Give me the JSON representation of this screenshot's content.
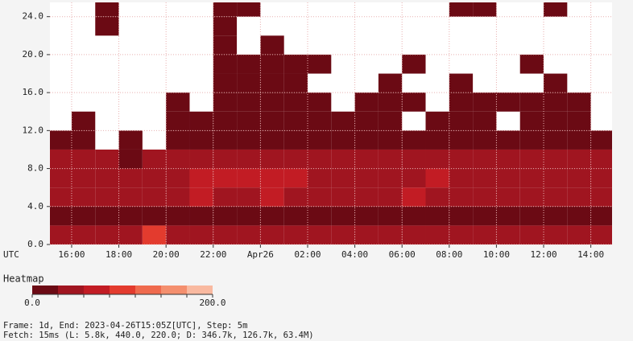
{
  "chart_data": {
    "type": "heatmap",
    "x_label": "UTC",
    "xlim": [
      15.08,
      38.9
    ],
    "xticks": [
      {
        "value": 16,
        "label": "16:00"
      },
      {
        "value": 18,
        "label": "18:00"
      },
      {
        "value": 20,
        "label": "20:00"
      },
      {
        "value": 22,
        "label": "22:00"
      },
      {
        "value": 24,
        "label": "Apr26"
      },
      {
        "value": 26,
        "label": "02:00"
      },
      {
        "value": 28,
        "label": "04:00"
      },
      {
        "value": 30,
        "label": "06:00"
      },
      {
        "value": 32,
        "label": "08:00"
      },
      {
        "value": 34,
        "label": "10:00"
      },
      {
        "value": 36,
        "label": "12:00"
      },
      {
        "value": 38,
        "label": "14:00"
      }
    ],
    "ylim": [
      0,
      25.5
    ],
    "yticks": [
      {
        "value": 0,
        "label": "0.0"
      },
      {
        "value": 4,
        "label": "4.0"
      },
      {
        "value": 8,
        "label": "8.0"
      },
      {
        "value": 12,
        "label": "12.0"
      },
      {
        "value": 16,
        "label": "16.0"
      },
      {
        "value": 20,
        "label": "20.0"
      },
      {
        "value": 24,
        "label": "24.0"
      }
    ],
    "grid": true,
    "x_bins": [
      15.08,
      16,
      17,
      18,
      19,
      20,
      21,
      22,
      23,
      24,
      25,
      26,
      27,
      28,
      29,
      30,
      31,
      32,
      33,
      34,
      35,
      36,
      37,
      38,
      38.9
    ],
    "y_bins": [
      0,
      2,
      4,
      6,
      8,
      10,
      12,
      14,
      16,
      18,
      20,
      22,
      24,
      26
    ],
    "values": [
      [
        30,
        30,
        30,
        35,
        110,
        30,
        30,
        30,
        30,
        30,
        30,
        30,
        30,
        30,
        30,
        30,
        30,
        30,
        30,
        30,
        30,
        30,
        30,
        30
      ],
      [
        25,
        25,
        25,
        25,
        25,
        25,
        25,
        25,
        25,
        25,
        25,
        25,
        25,
        25,
        25,
        25,
        25,
        25,
        25,
        25,
        25,
        25,
        25,
        25
      ],
      [
        40,
        45,
        40,
        45,
        40,
        40,
        60,
        40,
        45,
        60,
        40,
        45,
        40,
        45,
        40,
        60,
        45,
        40,
        45,
        40,
        45,
        40,
        45,
        40
      ],
      [
        50,
        45,
        50,
        45,
        50,
        55,
        60,
        70,
        60,
        70,
        65,
        50,
        45,
        50,
        45,
        50,
        60,
        50,
        45,
        50,
        55,
        50,
        45,
        50
      ],
      [
        30,
        30,
        30,
        25,
        30,
        35,
        45,
        40,
        45,
        40,
        35,
        30,
        30,
        30,
        30,
        30,
        35,
        30,
        30,
        30,
        30,
        30,
        30,
        30
      ],
      [
        15,
        10,
        null,
        10,
        null,
        20,
        15,
        20,
        15,
        20,
        15,
        10,
        15,
        10,
        15,
        10,
        15,
        10,
        15,
        10,
        10,
        15,
        10,
        10
      ],
      [
        null,
        10,
        null,
        null,
        null,
        15,
        10,
        15,
        20,
        15,
        15,
        10,
        10,
        15,
        10,
        null,
        10,
        10,
        15,
        null,
        10,
        15,
        10,
        null
      ],
      [
        null,
        null,
        null,
        null,
        null,
        10,
        null,
        10,
        15,
        10,
        10,
        10,
        null,
        10,
        10,
        10,
        null,
        10,
        10,
        10,
        10,
        10,
        10,
        null
      ],
      [
        null,
        null,
        null,
        null,
        null,
        null,
        null,
        10,
        10,
        10,
        10,
        null,
        null,
        null,
        10,
        null,
        null,
        10,
        null,
        null,
        null,
        10,
        null,
        null
      ],
      [
        null,
        null,
        null,
        null,
        null,
        null,
        null,
        10,
        10,
        10,
        10,
        10,
        null,
        null,
        null,
        10,
        null,
        null,
        null,
        null,
        10,
        null,
        null,
        null
      ],
      [
        null,
        null,
        null,
        null,
        null,
        null,
        null,
        10,
        null,
        10,
        null,
        null,
        null,
        null,
        null,
        null,
        null,
        null,
        null,
        null,
        null,
        null,
        null,
        null
      ],
      [
        null,
        null,
        10,
        null,
        null,
        null,
        null,
        10,
        null,
        null,
        null,
        null,
        null,
        null,
        null,
        null,
        null,
        null,
        null,
        null,
        null,
        null,
        null,
        null
      ],
      [
        null,
        null,
        10,
        null,
        null,
        null,
        null,
        10,
        10,
        null,
        null,
        null,
        null,
        null,
        null,
        null,
        null,
        10,
        10,
        null,
        null,
        10,
        null,
        null
      ]
    ],
    "legend_title": "Heatmap",
    "scale_range": [
      {
        "value": 0,
        "label": "0.0"
      },
      {
        "value": 200,
        "label": "200.0"
      }
    ],
    "colors": [
      "#6b0a14",
      "#a01520",
      "#c21c24",
      "#e33b2e",
      "#ef6a4e",
      "#f48f6e",
      "#f9b9a0"
    ],
    "footer": [
      "Frame: 1d, End: 2023-04-26T15:05Z[UTC], Step: 5m",
      "Fetch: 15ms (L: 5.8k, 440.0, 220.0; D: 346.7k, 126.7k, 63.4M)"
    ]
  }
}
